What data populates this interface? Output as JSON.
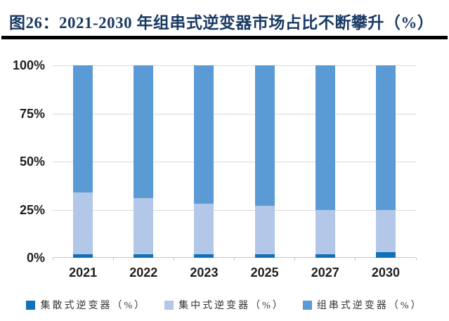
{
  "figure": {
    "title": "图26：2021-2030 年组串式逆变器市场占比不断攀升（%）"
  },
  "chart_data": {
    "type": "bar",
    "stacked": true,
    "title": "2021-2030 年组串式逆变器市场占比不断攀升（%）",
    "categories": [
      "2021",
      "2022",
      "2023",
      "2025",
      "2027",
      "2030"
    ],
    "series": [
      {
        "name": "集散式逆变器（%）",
        "color": "#1070B8",
        "values": [
          2,
          2,
          2,
          2,
          2,
          3
        ]
      },
      {
        "name": "集中式逆变器（%）",
        "color": "#B3C7E8",
        "values": [
          32,
          29,
          26,
          25,
          23,
          22
        ]
      },
      {
        "name": "组串式逆变器（%）",
        "color": "#5B9BD5",
        "values": [
          66,
          69,
          72,
          73,
          75,
          75
        ]
      }
    ],
    "ylim": [
      0,
      100
    ],
    "yticks": [
      {
        "value": 0,
        "label": "0%"
      },
      {
        "value": 25,
        "label": "25%"
      },
      {
        "value": 50,
        "label": "50%"
      },
      {
        "value": 75,
        "label": "75%"
      },
      {
        "value": 100,
        "label": "100%"
      }
    ],
    "grid": true,
    "legend_position": "bottom"
  },
  "colors": {
    "background": "#FFFFFF",
    "title_text": "#1B3A63",
    "title_underline": "#000000",
    "gridline": "#D9D9D9",
    "axis_line": "#C8C8C8",
    "tick_text": "#1F1F1F",
    "legend_text": "#333333"
  }
}
